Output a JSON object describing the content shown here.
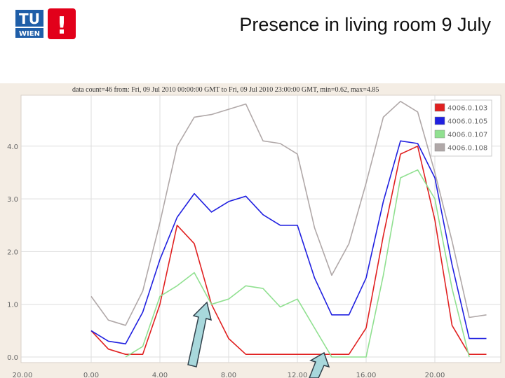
{
  "slide": {
    "title": "Presence in living room 9 July"
  },
  "logo": {
    "text_top": "TU",
    "text_bottom": "WIEN",
    "mark": "!",
    "color": "#e2001a"
  },
  "chart_data": {
    "type": "line",
    "header": "data count=46 from: Fri, 09 Jul 2010 00:00:00 GMT to Fri, 09 Jul 2010 23:00:00 GMT, min=0.62, max=4.85",
    "x_ticks": [
      "20.00",
      "0.00",
      "4.00",
      "8.00",
      "12.00",
      "16.00",
      "20.00"
    ],
    "y_ticks": [
      "0.0",
      "1.0",
      "2.0",
      "3.0",
      "4.0"
    ],
    "ylim": [
      0,
      4.9
    ],
    "grid": true,
    "legend_position": "top-right",
    "series": [
      {
        "name": "4006.0.103",
        "color": "#e02020",
        "points": [
          [
            0,
            0.5
          ],
          [
            1,
            0.15
          ],
          [
            2,
            0.05
          ],
          [
            3,
            0.05
          ],
          [
            4,
            1.0
          ],
          [
            5,
            2.5
          ],
          [
            6,
            2.15
          ],
          [
            7,
            1.0
          ],
          [
            8,
            0.35
          ],
          [
            9,
            0.05
          ],
          [
            10,
            0.05
          ],
          [
            11,
            0.05
          ],
          [
            12,
            0.05
          ],
          [
            13,
            0.05
          ],
          [
            14,
            0.05
          ],
          [
            15,
            0.05
          ],
          [
            16,
            0.55
          ],
          [
            17,
            2.3
          ],
          [
            18,
            3.85
          ],
          [
            19,
            4.0
          ],
          [
            20,
            2.6
          ],
          [
            21,
            0.6
          ],
          [
            22,
            0.05
          ],
          [
            23,
            0.05
          ]
        ]
      },
      {
        "name": "4006.0.105",
        "color": "#2020e0",
        "points": [
          [
            0,
            0.5
          ],
          [
            1,
            0.3
          ],
          [
            2,
            0.25
          ],
          [
            3,
            0.85
          ],
          [
            4,
            1.85
          ],
          [
            5,
            2.65
          ],
          [
            6,
            3.1
          ],
          [
            7,
            2.75
          ],
          [
            8,
            2.95
          ],
          [
            9,
            3.05
          ],
          [
            10,
            2.7
          ],
          [
            11,
            2.5
          ],
          [
            12,
            2.5
          ],
          [
            13,
            1.5
          ],
          [
            14,
            0.8
          ],
          [
            15,
            0.8
          ],
          [
            16,
            1.5
          ],
          [
            17,
            2.95
          ],
          [
            18,
            4.1
          ],
          [
            19,
            4.05
          ],
          [
            20,
            3.4
          ],
          [
            21,
            1.75
          ],
          [
            22,
            0.35
          ],
          [
            23,
            0.35
          ]
        ]
      },
      {
        "name": "4006.0.107",
        "color": "#90e090",
        "points": [
          [
            2,
            0.0
          ],
          [
            3,
            0.2
          ],
          [
            4,
            1.15
          ],
          [
            5,
            1.35
          ],
          [
            6,
            1.6
          ],
          [
            7,
            1.0
          ],
          [
            8,
            1.1
          ],
          [
            9,
            1.35
          ],
          [
            10,
            1.3
          ],
          [
            11,
            0.95
          ],
          [
            12,
            1.1
          ],
          [
            13,
            0.55
          ],
          [
            14,
            0.0
          ],
          [
            16,
            0.0
          ],
          [
            17,
            1.55
          ],
          [
            18,
            3.4
          ],
          [
            19,
            3.55
          ],
          [
            20,
            3.0
          ],
          [
            21,
            1.3
          ],
          [
            22,
            0.0
          ]
        ]
      },
      {
        "name": "4006.0.108",
        "color": "#b0a8a8",
        "points": [
          [
            0,
            1.15
          ],
          [
            1,
            0.7
          ],
          [
            2,
            0.6
          ],
          [
            3,
            1.25
          ],
          [
            4,
            2.55
          ],
          [
            5,
            4.0
          ],
          [
            6,
            4.55
          ],
          [
            7,
            4.6
          ],
          [
            8,
            4.7
          ],
          [
            9,
            4.8
          ],
          [
            10,
            4.1
          ],
          [
            11,
            4.05
          ],
          [
            12,
            3.85
          ],
          [
            13,
            2.45
          ],
          [
            14,
            1.55
          ],
          [
            15,
            2.15
          ],
          [
            16,
            3.3
          ],
          [
            17,
            4.55
          ],
          [
            18,
            4.85
          ],
          [
            19,
            4.65
          ],
          [
            20,
            3.5
          ],
          [
            21,
            2.2
          ],
          [
            22,
            0.75
          ],
          [
            23,
            0.8
          ]
        ]
      }
    ]
  }
}
